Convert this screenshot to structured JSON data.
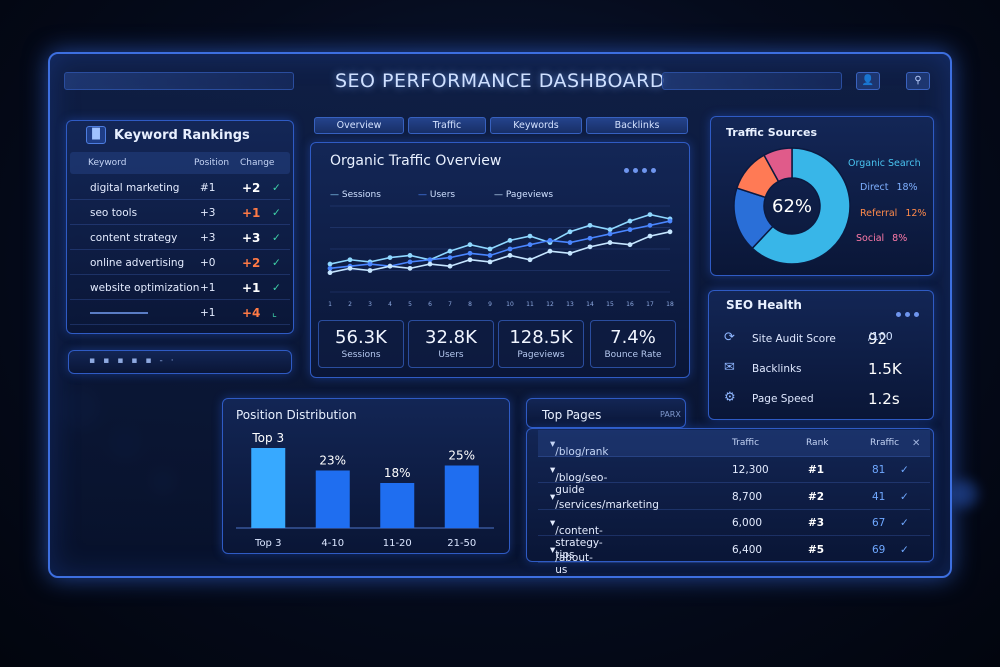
{
  "dashboard": {
    "title": "SEO PERFORMANCE DASHBOARD"
  },
  "tabs": [
    "Overview",
    "Traffic",
    "Keywords",
    "Backlinks"
  ],
  "keyword_rankings": {
    "title": "Keyword Rankings",
    "headers": {
      "keyword": "Keyword",
      "position": "Position",
      "change": "Change"
    },
    "rows": [
      {
        "keyword": "digital marketing",
        "position": "#1",
        "change": "+2",
        "mark": "✓",
        "change_color": "#ffffff"
      },
      {
        "keyword": "seo tools",
        "position": "+3",
        "change": "+1",
        "mark": "✓",
        "change_color": "#ff7a45"
      },
      {
        "keyword": "content strategy",
        "position": "+3",
        "change": "+3",
        "mark": "✓",
        "change_color": "#ffffff"
      },
      {
        "keyword": "online advertising",
        "position": "+0",
        "change": "+2",
        "mark": "✓",
        "change_color": "#ff7a45"
      },
      {
        "keyword": "website optimization",
        "position": "+1",
        "change": "+1",
        "mark": "✓",
        "change_color": "#ffffff"
      },
      {
        "keyword": "",
        "position": "+1",
        "change": "+4",
        "mark": "⌞",
        "change_color": "#ff7a45"
      }
    ]
  },
  "organic_traffic": {
    "title": "Organic Traffic Overview",
    "legend": [
      "Sessions",
      "Users",
      "Pageviews"
    ],
    "stats": [
      {
        "value": "56.3K",
        "label": "Sessions"
      },
      {
        "value": "32.8K",
        "label": "Users"
      },
      {
        "value": "128.5K",
        "label": "Pageviews"
      },
      {
        "value": "7.4%",
        "label": "Bounce Rate"
      }
    ]
  },
  "chart_data": {
    "type": "line",
    "title": "Organic Traffic Overview",
    "x": [
      1,
      2,
      3,
      4,
      5,
      6,
      7,
      8,
      9,
      10,
      11,
      12,
      13,
      14,
      15,
      16,
      17,
      18
    ],
    "series": [
      {
        "name": "Sessions",
        "color": "#8fd8ff",
        "values": [
          26,
          30,
          28,
          32,
          34,
          30,
          38,
          44,
          40,
          48,
          52,
          46,
          56,
          62,
          58,
          66,
          72,
          68
        ]
      },
      {
        "name": "Users",
        "color": "#4a86ff",
        "values": [
          22,
          24,
          26,
          24,
          28,
          30,
          32,
          36,
          34,
          40,
          44,
          48,
          46,
          50,
          54,
          58,
          62,
          66
        ]
      },
      {
        "name": "Pageviews",
        "color": "#c6e6ff",
        "values": [
          18,
          22,
          20,
          24,
          22,
          26,
          24,
          30,
          28,
          34,
          30,
          38,
          36,
          42,
          46,
          44,
          52,
          56
        ]
      }
    ],
    "ylim": [
      0,
      80
    ]
  },
  "traffic_sources": {
    "title": "Traffic Sources",
    "center_label": "62%",
    "slices": [
      {
        "label": "Organic Search",
        "value": 62,
        "color": "#38b6e8"
      },
      {
        "label": "Direct",
        "value": 18,
        "color": "#2a6fd8"
      },
      {
        "label": "Referral",
        "value": 12,
        "color": "#ff7a55"
      },
      {
        "label": "Social",
        "value": 8,
        "color": "#e05b8a"
      }
    ],
    "legend": [
      {
        "label": "Organic Search",
        "pct": "",
        "color": "#49c4f0"
      },
      {
        "label": "Direct",
        "pct": "18%",
        "color": "#7fb0ff"
      },
      {
        "label": "Referral",
        "pct": "12%",
        "color": "#ff8a4a"
      },
      {
        "label": "Social",
        "pct": "8%",
        "color": "#ff7aa8"
      }
    ]
  },
  "seo_health": {
    "title": "SEO Health",
    "items": [
      {
        "label": "Site Audit Score",
        "value": "92",
        "suffix": "/100",
        "icon": "gauge-icon"
      },
      {
        "label": "Backlinks",
        "value": "1.5K",
        "suffix": "",
        "icon": "mail-icon"
      },
      {
        "label": "Page Speed",
        "value": "1.2s",
        "suffix": "",
        "icon": "gear-icon"
      }
    ]
  },
  "position_distribution": {
    "title": "Position Distribution",
    "top_label": "Top 3",
    "categories": [
      "Top 3",
      "4-10",
      "11-20",
      "21-50"
    ],
    "values": [
      32,
      23,
      18,
      25
    ],
    "value_labels": [
      "",
      "23%",
      "18%",
      "25%"
    ]
  },
  "top_pages": {
    "title": "Top Pages",
    "filter_label": "PARX",
    "headers": {
      "page": "/blog/rank",
      "traffic": "Traffic",
      "rank": "Rank",
      "extra": "Rraffic"
    },
    "rows": [
      {
        "page": "/blog/seo-guide",
        "traffic": "12,300",
        "rank": "#1",
        "score": "81"
      },
      {
        "page": "/services/marketing",
        "traffic": "8,700",
        "rank": "#2",
        "score": "41"
      },
      {
        "page": "/content-strategy-tips",
        "traffic": "6,000",
        "rank": "#3",
        "score": "67"
      },
      {
        "page": "/about-us",
        "traffic": "6,400",
        "rank": "#5",
        "score": "69"
      }
    ]
  }
}
